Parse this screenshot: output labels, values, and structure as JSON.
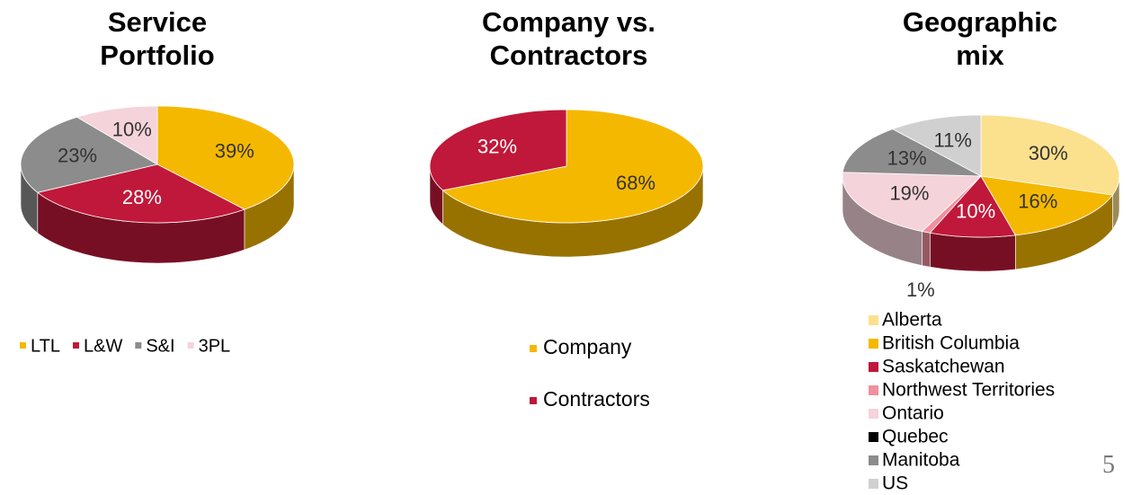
{
  "chart_data": [
    {
      "type": "pie",
      "title": "Service Portfolio",
      "categories": [
        "LTL",
        "L&W",
        "S&I",
        "3PL"
      ],
      "values": [
        39,
        28,
        23,
        10
      ],
      "value_labels": [
        "39%",
        "28%",
        "23%",
        "10%"
      ],
      "colors": [
        "#f5b800",
        "#c0183a",
        "#8c8c8c",
        "#f4d3da"
      ],
      "legend": "bottom"
    },
    {
      "type": "pie",
      "title": "Company vs. Contractors",
      "categories": [
        "Company",
        "Contractors"
      ],
      "values": [
        68,
        32
      ],
      "value_labels": [
        "68%",
        "32%"
      ],
      "colors": [
        "#f5b800",
        "#c0183a"
      ],
      "legend": "bottom"
    },
    {
      "type": "pie",
      "title": "Geographic mix",
      "categories": [
        "Alberta",
        "British Columbia",
        "Saskatchewan",
        "Northwest Territories",
        "Ontario",
        "Quebec",
        "Manitoba",
        "US"
      ],
      "values": [
        30,
        16,
        10,
        1,
        19,
        0,
        13,
        11
      ],
      "value_labels": [
        "30%",
        "16%",
        "10%",
        "1%",
        "19%",
        null,
        "13%",
        "11%"
      ],
      "colors": [
        "#fbe08e",
        "#f5b800",
        "#c0183a",
        "#f0909f",
        "#f4d3da",
        "#000000",
        "#8c8c8c",
        "#d0d0d0"
      ],
      "legend": "bottom"
    }
  ],
  "page_number": "5"
}
